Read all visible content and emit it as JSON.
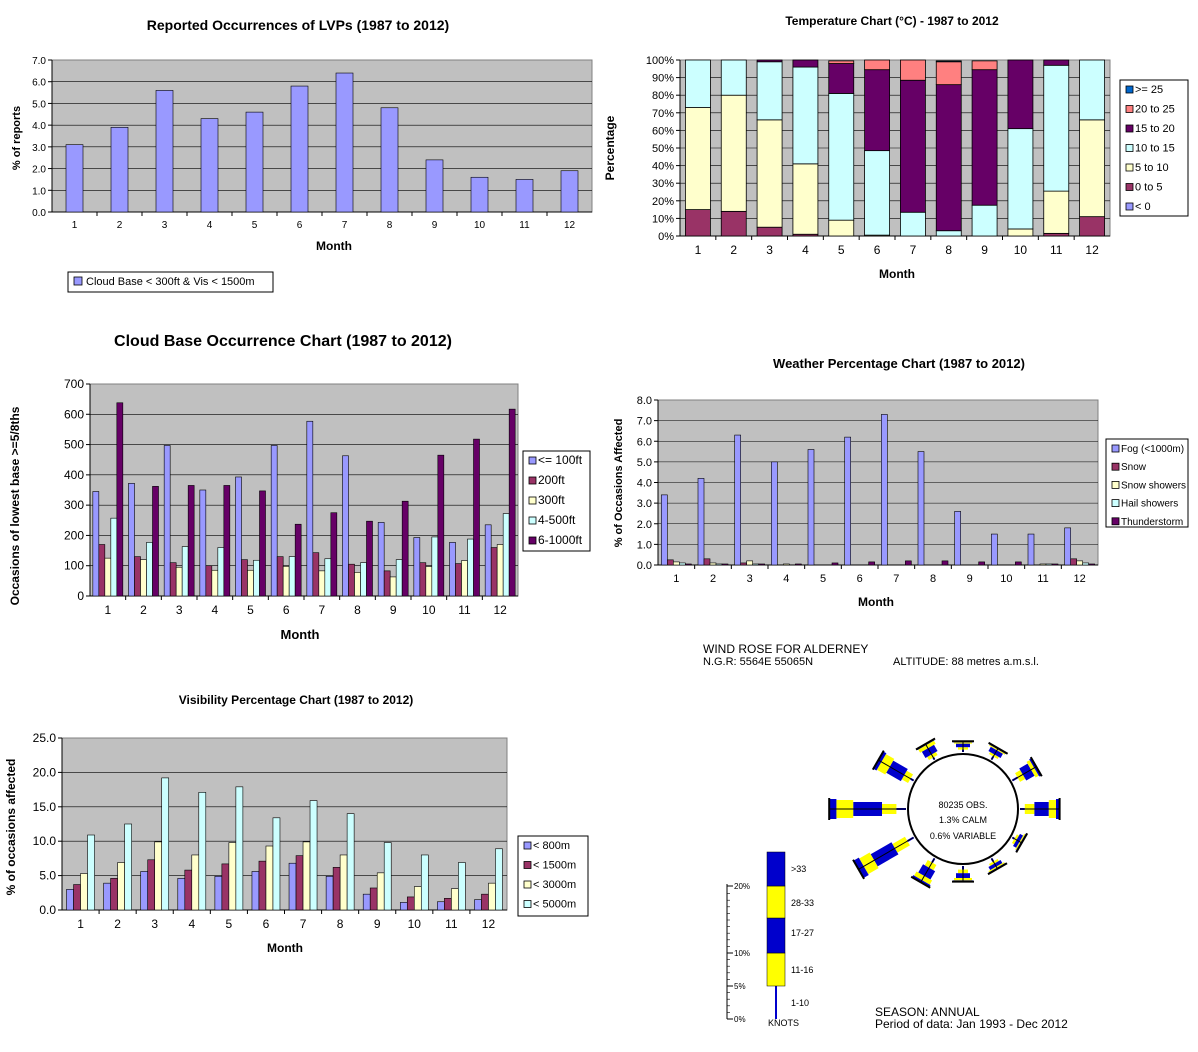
{
  "chart_data": [
    {
      "id": "lvp",
      "type": "bar",
      "title": "Reported Occurrences of LVPs (1987 to 2012)",
      "xlabel": "Month",
      "ylabel": "% of reports",
      "ylim": [
        0,
        7
      ],
      "yticks": [
        "0.0",
        "1.0",
        "2.0",
        "3.0",
        "4.0",
        "5.0",
        "6.0",
        "7.0"
      ],
      "categories": [
        "1",
        "2",
        "3",
        "4",
        "5",
        "6",
        "7",
        "8",
        "9",
        "10",
        "11",
        "12"
      ],
      "grid": true,
      "legend_position": "bottom-left",
      "series": [
        {
          "name": "Cloud Base < 300ft & Vis < 1500m",
          "color": "#9999ff",
          "values": [
            3.1,
            3.9,
            5.6,
            4.3,
            4.6,
            5.8,
            6.4,
            4.8,
            2.4,
            1.6,
            1.5,
            1.9
          ]
        }
      ]
    },
    {
      "id": "temp",
      "type": "bar",
      "stacked": true,
      "title": "Temperature Chart (°C) - 1987 to 2012",
      "xlabel": "Month",
      "ylabel": "Percentage",
      "ylim": [
        0,
        100
      ],
      "yticks": [
        "0%",
        "10%",
        "20%",
        "30%",
        "40%",
        "50%",
        "60%",
        "70%",
        "80%",
        "90%",
        "100%"
      ],
      "categories": [
        "1",
        "2",
        "3",
        "4",
        "5",
        "6",
        "7",
        "8",
        "9",
        "10",
        "11",
        "12"
      ],
      "grid": true,
      "legend_position": "right",
      "series": [
        {
          "name": "< 0",
          "color": "#9999ff",
          "values": [
            0,
            0,
            0,
            0,
            0,
            0,
            0,
            0,
            0,
            0,
            0,
            0
          ]
        },
        {
          "name": "0 to 5",
          "color": "#993366",
          "values": [
            15,
            14,
            5,
            1,
            0,
            0,
            0,
            0,
            0,
            0,
            1.5,
            11
          ]
        },
        {
          "name": "5 to 10",
          "color": "#ffffcc",
          "values": [
            58,
            66,
            61,
            40,
            9,
            0.5,
            0,
            0,
            0,
            4,
            24,
            55
          ]
        },
        {
          "name": "10 to 15",
          "color": "#ccffff",
          "values": [
            27,
            20,
            33,
            55,
            72,
            48,
            13.5,
            3,
            17.5,
            57,
            71.5,
            34
          ]
        },
        {
          "name": "15 to 20",
          "color": "#660066",
          "values": [
            0,
            0,
            1,
            4,
            17,
            46,
            75,
            83,
            77,
            39,
            3,
            0
          ]
        },
        {
          "name": "20 to 25",
          "color": "#ff8080",
          "values": [
            0,
            0,
            0,
            0,
            1.5,
            5.5,
            11.5,
            13,
            5,
            0,
            0,
            0
          ]
        },
        {
          "name": ">= 25",
          "color": "#0066cc",
          "values": [
            0,
            0,
            0,
            0,
            0,
            0,
            0,
            0.5,
            0,
            0,
            0,
            0
          ]
        }
      ]
    },
    {
      "id": "cloud",
      "type": "bar",
      "title": "Cloud Base Occurrence Chart (1987 to 2012)",
      "xlabel": "Month",
      "ylabel": "Occasions of lowest base >=5/8ths",
      "ylim": [
        0,
        700
      ],
      "yticks": [
        "0",
        "100",
        "200",
        "300",
        "400",
        "500",
        "600",
        "700"
      ],
      "categories": [
        "1",
        "2",
        "3",
        "4",
        "5",
        "6",
        "7",
        "8",
        "9",
        "10",
        "11",
        "12"
      ],
      "grid": true,
      "legend_position": "right",
      "series": [
        {
          "name": "<= 100ft",
          "color": "#9999ff",
          "values": [
            345,
            372,
            497,
            350,
            393,
            497,
            577,
            463,
            243,
            193,
            177,
            235
          ]
        },
        {
          "name": "200ft",
          "color": "#993366",
          "values": [
            170,
            130,
            110,
            100,
            120,
            130,
            143,
            105,
            83,
            110,
            107,
            160
          ]
        },
        {
          "name": "300ft",
          "color": "#ffffcc",
          "values": [
            125,
            120,
            95,
            85,
            85,
            98,
            83,
            78,
            63,
            97,
            117,
            170
          ]
        },
        {
          "name": "4-500ft",
          "color": "#ccffff",
          "values": [
            257,
            177,
            163,
            160,
            118,
            130,
            123,
            110,
            120,
            195,
            188,
            272
          ]
        },
        {
          "name": "6-1000ft",
          "color": "#660066",
          "values": [
            638,
            362,
            365,
            365,
            347,
            237,
            275,
            247,
            313,
            465,
            518,
            617
          ]
        }
      ]
    },
    {
      "id": "weather",
      "type": "bar",
      "title": "Weather Percentage Chart (1987 to 2012)",
      "xlabel": "Month",
      "ylabel": "% of Occasions Affected",
      "ylim": [
        0,
        8
      ],
      "yticks": [
        "0.0",
        "1.0",
        "2.0",
        "3.0",
        "4.0",
        "5.0",
        "6.0",
        "7.0",
        "8.0"
      ],
      "categories": [
        "1",
        "2",
        "3",
        "4",
        "5",
        "6",
        "7",
        "8",
        "9",
        "10",
        "11",
        "12"
      ],
      "grid": true,
      "legend_position": "right",
      "series": [
        {
          "name": "Fog (<1000m)",
          "color": "#9999ff",
          "values": [
            3.4,
            4.2,
            6.3,
            5.0,
            5.6,
            6.2,
            7.3,
            5.5,
            2.6,
            1.5,
            1.5,
            1.8
          ]
        },
        {
          "name": "Snow",
          "color": "#993366",
          "values": [
            0.25,
            0.3,
            0.1,
            0,
            0,
            0,
            0,
            0,
            0,
            0,
            0,
            0.3
          ]
        },
        {
          "name": "Snow showers",
          "color": "#ffffcc",
          "values": [
            0.15,
            0.1,
            0.2,
            0.05,
            0,
            0,
            0,
            0,
            0,
            0,
            0.05,
            0.2
          ]
        },
        {
          "name": "Hail showers",
          "color": "#ccffff",
          "values": [
            0.1,
            0.05,
            0.05,
            0,
            0,
            0,
            0,
            0,
            0,
            0,
            0.05,
            0.1
          ]
        },
        {
          "name": "Thunderstorm",
          "color": "#660066",
          "values": [
            0.05,
            0.05,
            0.05,
            0.05,
            0.1,
            0.15,
            0.2,
            0.2,
            0.15,
            0.15,
            0.05,
            0.05
          ]
        }
      ]
    },
    {
      "id": "vis",
      "type": "bar",
      "title": "Visibility  Percentage Chart (1987 to 2012)",
      "xlabel": "Month",
      "ylabel": "% of occasions affected",
      "ylim": [
        0,
        25
      ],
      "yticks": [
        "0.0",
        "5.0",
        "10.0",
        "15.0",
        "20.0",
        "25.0"
      ],
      "categories": [
        "1",
        "2",
        "3",
        "4",
        "5",
        "6",
        "7",
        "8",
        "9",
        "10",
        "11",
        "12"
      ],
      "grid": true,
      "legend_position": "right",
      "series": [
        {
          "name": "< 800m",
          "color": "#9999ff",
          "values": [
            3.0,
            3.9,
            5.6,
            4.6,
            4.9,
            5.6,
            6.8,
            4.9,
            2.3,
            1.1,
            1.2,
            1.5
          ]
        },
        {
          "name": "< 1500m",
          "color": "#993366",
          "values": [
            3.7,
            4.6,
            7.3,
            5.8,
            6.7,
            7.1,
            7.9,
            6.2,
            3.2,
            1.9,
            1.7,
            2.3
          ]
        },
        {
          "name": "< 3000m",
          "color": "#ffffcc",
          "values": [
            5.3,
            6.9,
            9.9,
            8.0,
            9.8,
            9.3,
            9.9,
            8.0,
            5.4,
            3.4,
            3.1,
            3.9
          ]
        },
        {
          "name": "< 5000m",
          "color": "#ccffff",
          "values": [
            10.9,
            12.5,
            19.2,
            17.1,
            17.9,
            13.4,
            15.9,
            14.0,
            9.8,
            8.0,
            6.9,
            8.9
          ]
        }
      ]
    }
  ],
  "windrose": {
    "title": "WIND ROSE FOR ALDERNEY",
    "ngr": "N.G.R: 5564E 55065N",
    "altitude": "ALTITUDE:   88 metres a.m.s.l.",
    "center_lines": [
      "80235 OBS.",
      "1.3% CALM",
      "0.6% VARIABLE"
    ],
    "season": "SEASON: ANNUAL",
    "period": "Period of data: Jan 1993 - Dec 2012",
    "scale_labels": [
      "20%",
      "10%",
      "5%",
      "0%"
    ],
    "scale_unit": "KNOTS",
    "speed_classes": [
      "1-10",
      "11-16",
      "17-27",
      "28-33",
      ">33"
    ],
    "class_colors": [
      "#0000cc",
      "#ffff00",
      "#0000cc",
      "#ffff00",
      "#0000cc"
    ],
    "directions_deg": [
      0,
      30,
      60,
      90,
      120,
      150,
      180,
      210,
      240,
      270,
      300,
      330
    ],
    "direction_percent": [
      [
        0.2,
        0.2,
        0.3,
        0.1,
        0.1
      ],
      [
        0.3,
        0.2,
        0.4,
        0.1,
        0.1
      ],
      [
        0.5,
        0.5,
        0.8,
        0.3,
        0.2
      ],
      [
        0.4,
        0.8,
        1.2,
        0.6,
        0.3
      ],
      [
        0.2,
        0.2,
        0.3,
        0.1,
        0.1
      ],
      [
        0.3,
        0.2,
        0.3,
        0.1,
        0.1
      ],
      [
        0.3,
        0.3,
        0.4,
        0.2,
        0.1
      ],
      [
        0.4,
        0.5,
        0.8,
        0.4,
        0.2
      ],
      [
        0.6,
        1.2,
        2.0,
        1.0,
        0.5
      ],
      [
        0.8,
        1.2,
        2.4,
        1.4,
        0.6
      ],
      [
        0.3,
        0.6,
        1.4,
        0.8,
        0.3
      ],
      [
        0.2,
        0.3,
        0.6,
        0.3,
        0.1
      ]
    ]
  }
}
